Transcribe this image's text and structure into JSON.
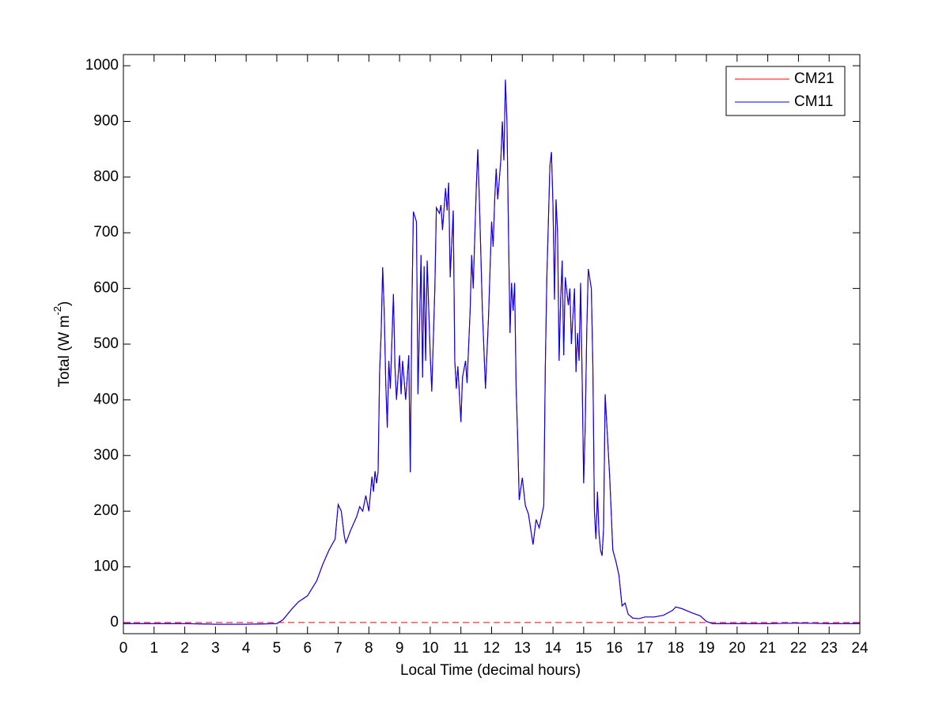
{
  "chart_data": {
    "type": "line",
    "xlabel": "Local Time (decimal hours)",
    "ylabel": {
      "text": "Total (W m",
      "superscript": "-2",
      "suffix": ")"
    },
    "xlim": [
      0,
      24
    ],
    "ylim": [
      -20,
      1020
    ],
    "xticks": [
      0,
      1,
      2,
      3,
      4,
      5,
      6,
      7,
      8,
      9,
      10,
      11,
      12,
      13,
      14,
      15,
      16,
      17,
      18,
      19,
      20,
      21,
      22,
      23,
      24
    ],
    "yticks": [
      0,
      100,
      200,
      300,
      400,
      500,
      600,
      700,
      800,
      900,
      1000
    ],
    "legend": "northeast",
    "hline": {
      "value": 0,
      "color": "#ff0000",
      "style": "dashed"
    },
    "x": [
      0,
      1,
      2,
      3,
      4,
      5,
      5.2,
      5.5,
      5.7,
      6,
      6.3,
      6.5,
      6.7,
      6.9,
      7,
      7.1,
      7.2,
      7.25,
      7.4,
      7.6,
      7.7,
      7.8,
      7.9,
      8,
      8.1,
      8.15,
      8.2,
      8.25,
      8.3,
      8.35,
      8.4,
      8.45,
      8.5,
      8.55,
      8.6,
      8.65,
      8.7,
      8.8,
      8.85,
      8.9,
      9,
      9.05,
      9.1,
      9.2,
      9.3,
      9.35,
      9.4,
      9.45,
      9.55,
      9.6,
      9.7,
      9.75,
      9.8,
      9.85,
      9.9,
      10,
      10.05,
      10.15,
      10.2,
      10.3,
      10.35,
      10.4,
      10.5,
      10.55,
      10.6,
      10.65,
      10.75,
      10.8,
      10.85,
      10.9,
      10.95,
      11,
      11.05,
      11.15,
      11.2,
      11.3,
      11.35,
      11.4,
      11.5,
      11.55,
      11.6,
      11.7,
      11.8,
      11.9,
      12,
      12.05,
      12.1,
      12.15,
      12.2,
      12.3,
      12.35,
      12.4,
      12.45,
      12.5,
      12.55,
      12.6,
      12.65,
      12.7,
      12.75,
      12.8,
      12.85,
      12.9,
      13,
      13.1,
      13.2,
      13.35,
      13.45,
      13.55,
      13.7,
      13.75,
      13.8,
      13.9,
      13.95,
      14,
      14.05,
      14.1,
      14.15,
      14.2,
      14.25,
      14.3,
      14.35,
      14.4,
      14.5,
      14.55,
      14.6,
      14.7,
      14.75,
      14.8,
      14.85,
      14.9,
      14.95,
      15,
      15.05,
      15.1,
      15.15,
      15.25,
      15.3,
      15.35,
      15.4,
      15.45,
      15.5,
      15.55,
      15.6,
      15.65,
      15.7,
      15.75,
      15.85,
      15.95,
      16.05,
      16.15,
      16.25,
      16.35,
      16.45,
      16.6,
      16.8,
      17,
      17.3,
      17.6,
      17.9,
      18,
      18.2,
      18.5,
      18.8,
      19,
      19.2,
      20,
      21,
      22,
      23,
      24
    ],
    "series": [
      {
        "name": "CM21",
        "color": "#ff0000",
        "values": [
          -2,
          -2,
          -2,
          -3,
          -3,
          -2,
          5,
          25,
          37,
          48,
          75,
          105,
          130,
          150,
          212,
          200,
          155,
          143,
          165,
          190,
          208,
          200,
          228,
          200,
          262,
          235,
          272,
          250,
          270,
          450,
          520,
          638,
          560,
          430,
          350,
          470,
          420,
          590,
          460,
          400,
          480,
          410,
          470,
          400,
          480,
          270,
          560,
          738,
          720,
          410,
          660,
          440,
          640,
          470,
          650,
          480,
          415,
          600,
          745,
          735,
          750,
          705,
          780,
          740,
          790,
          620,
          740,
          470,
          420,
          460,
          410,
          360,
          440,
          470,
          430,
          560,
          660,
          600,
          780,
          850,
          760,
          560,
          420,
          550,
          720,
          675,
          760,
          815,
          760,
          830,
          900,
          830,
          975,
          900,
          700,
          520,
          610,
          560,
          610,
          420,
          330,
          220,
          260,
          210,
          195,
          140,
          185,
          170,
          210,
          460,
          620,
          820,
          845,
          750,
          580,
          760,
          700,
          470,
          580,
          650,
          480,
          620,
          570,
          600,
          500,
          600,
          450,
          520,
          470,
          610,
          440,
          250,
          350,
          520,
          635,
          600,
          460,
          200,
          150,
          235,
          160,
          130,
          120,
          170,
          410,
          360,
          260,
          130,
          110,
          85,
          30,
          35,
          15,
          8,
          7,
          10,
          10,
          13,
          22,
          28,
          25,
          18,
          12,
          2,
          -2,
          -2,
          -2,
          -1,
          -2,
          -2
        ]
      },
      {
        "name": "CM11",
        "color": "#0000ff",
        "values": [
          -2,
          -2,
          -2,
          -3,
          -3,
          -2,
          5,
          25,
          37,
          48,
          75,
          105,
          130,
          150,
          212,
          200,
          155,
          143,
          165,
          190,
          208,
          200,
          228,
          200,
          262,
          235,
          272,
          250,
          270,
          450,
          520,
          638,
          560,
          430,
          350,
          470,
          420,
          590,
          460,
          400,
          480,
          410,
          470,
          400,
          480,
          270,
          560,
          738,
          720,
          410,
          660,
          440,
          640,
          470,
          650,
          480,
          415,
          600,
          745,
          735,
          750,
          705,
          780,
          740,
          790,
          620,
          740,
          470,
          420,
          460,
          410,
          360,
          440,
          470,
          430,
          560,
          660,
          600,
          780,
          850,
          760,
          560,
          420,
          550,
          720,
          675,
          760,
          815,
          760,
          830,
          900,
          830,
          975,
          900,
          700,
          520,
          610,
          560,
          610,
          420,
          330,
          220,
          260,
          210,
          195,
          140,
          185,
          170,
          210,
          460,
          620,
          820,
          845,
          750,
          580,
          760,
          700,
          470,
          580,
          650,
          480,
          620,
          570,
          600,
          500,
          600,
          450,
          520,
          470,
          610,
          440,
          250,
          350,
          520,
          635,
          600,
          460,
          200,
          150,
          235,
          160,
          130,
          120,
          170,
          410,
          360,
          260,
          130,
          110,
          85,
          30,
          35,
          15,
          8,
          7,
          10,
          10,
          13,
          22,
          28,
          25,
          18,
          12,
          2,
          -2,
          -2,
          -2,
          -1,
          -2,
          -2
        ]
      }
    ]
  }
}
